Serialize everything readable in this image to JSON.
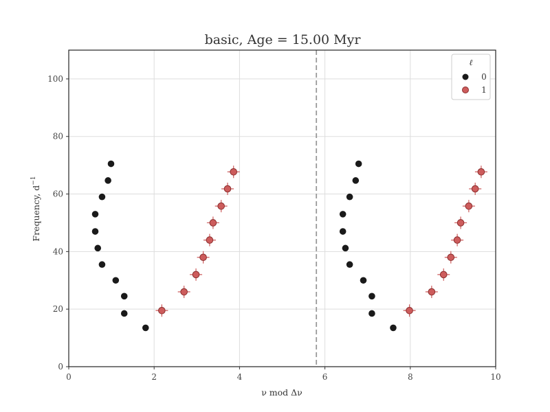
{
  "chart_data": {
    "type": "scatter",
    "title": "basic, Age = 15.00 Myr",
    "xlabel": "ν mod Δν",
    "ylabel": "Frequency, d",
    "ylabel_sup": "−1",
    "xlim": [
      0,
      10
    ],
    "ylim": [
      0,
      110
    ],
    "xticks": [
      0,
      2,
      4,
      6,
      8,
      10
    ],
    "yticks": [
      0,
      20,
      40,
      60,
      80,
      100
    ],
    "grid": true,
    "vline": {
      "x": 5.8,
      "style": "dashed",
      "color": "#999999"
    },
    "legend": {
      "title": "ℓ",
      "position": "top-right"
    },
    "series": [
      {
        "name": "0",
        "color": "#1a1a1a",
        "errorbars": false,
        "points": [
          {
            "x": 1.8,
            "y": 13.5
          },
          {
            "x": 1.3,
            "y": 18.5
          },
          {
            "x": 1.3,
            "y": 24.5
          },
          {
            "x": 1.1,
            "y": 30.0
          },
          {
            "x": 0.78,
            "y": 35.5
          },
          {
            "x": 0.68,
            "y": 41.2
          },
          {
            "x": 0.62,
            "y": 47.0
          },
          {
            "x": 0.62,
            "y": 53.0
          },
          {
            "x": 0.78,
            "y": 59.0
          },
          {
            "x": 0.92,
            "y": 64.7
          },
          {
            "x": 0.99,
            "y": 70.5
          },
          {
            "x": 7.6,
            "y": 13.5
          },
          {
            "x": 7.1,
            "y": 18.5
          },
          {
            "x": 7.1,
            "y": 24.5
          },
          {
            "x": 6.9,
            "y": 30.0
          },
          {
            "x": 6.58,
            "y": 35.5
          },
          {
            "x": 6.48,
            "y": 41.2
          },
          {
            "x": 6.42,
            "y": 47.0
          },
          {
            "x": 6.42,
            "y": 53.0
          },
          {
            "x": 6.58,
            "y": 59.0
          },
          {
            "x": 6.72,
            "y": 64.7
          },
          {
            "x": 6.79,
            "y": 70.5
          }
        ]
      },
      {
        "name": "1",
        "color": "#cd5c5c",
        "errorbars": true,
        "points": [
          {
            "x": 2.18,
            "y": 19.5
          },
          {
            "x": 2.7,
            "y": 26.0
          },
          {
            "x": 2.98,
            "y": 32.0
          },
          {
            "x": 3.15,
            "y": 38.0
          },
          {
            "x": 3.3,
            "y": 44.0
          },
          {
            "x": 3.38,
            "y": 50.0
          },
          {
            "x": 3.57,
            "y": 55.8
          },
          {
            "x": 3.72,
            "y": 61.8
          },
          {
            "x": 3.86,
            "y": 67.7
          },
          {
            "x": 7.98,
            "y": 19.5
          },
          {
            "x": 8.5,
            "y": 26.0
          },
          {
            "x": 8.78,
            "y": 32.0
          },
          {
            "x": 8.95,
            "y": 38.0
          },
          {
            "x": 9.1,
            "y": 44.0
          },
          {
            "x": 9.18,
            "y": 50.0
          },
          {
            "x": 9.37,
            "y": 55.8
          },
          {
            "x": 9.52,
            "y": 61.8
          },
          {
            "x": 9.66,
            "y": 67.7
          }
        ]
      }
    ]
  }
}
